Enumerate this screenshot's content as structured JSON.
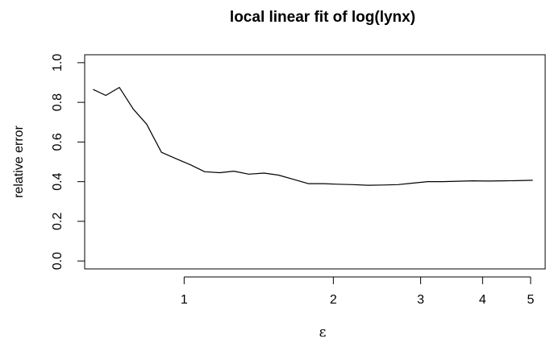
{
  "chart_data": {
    "type": "line",
    "title": "local linear fit of log(lynx)",
    "xlabel": "ε",
    "ylabel": "relative error",
    "x_scale": "log",
    "xlim": [
      0.63,
      5.35
    ],
    "ylim": [
      -0.04,
      1.04
    ],
    "grid": false,
    "x_ticks": [
      1,
      2,
      3,
      4,
      5
    ],
    "x_tick_labels": [
      "1",
      "2",
      "3",
      "4",
      "5"
    ],
    "y_ticks": [
      0.0,
      0.2,
      0.4,
      0.6,
      0.8,
      1.0
    ],
    "y_tick_labels": [
      "0.0",
      "0.2",
      "0.4",
      "0.6",
      "0.8",
      "1.0"
    ],
    "series": [
      {
        "x": [
          0.655,
          0.695,
          0.74,
          0.79,
          0.84,
          0.9,
          0.965,
          1.03,
          1.1,
          1.18,
          1.26,
          1.35,
          1.45,
          1.55,
          1.66,
          1.78,
          1.91,
          2.04,
          2.19,
          2.35,
          2.52,
          2.7,
          2.9,
          3.1,
          3.32,
          3.56,
          3.82,
          4.1,
          4.39,
          4.7,
          5.05
        ],
        "y": [
          0.865,
          0.835,
          0.875,
          0.765,
          0.69,
          0.548,
          0.515,
          0.485,
          0.45,
          0.445,
          0.453,
          0.438,
          0.443,
          0.433,
          0.412,
          0.39,
          0.39,
          0.387,
          0.385,
          0.382,
          0.383,
          0.385,
          0.393,
          0.4,
          0.4,
          0.402,
          0.404,
          0.403,
          0.404,
          0.405,
          0.407
        ]
      }
    ]
  }
}
